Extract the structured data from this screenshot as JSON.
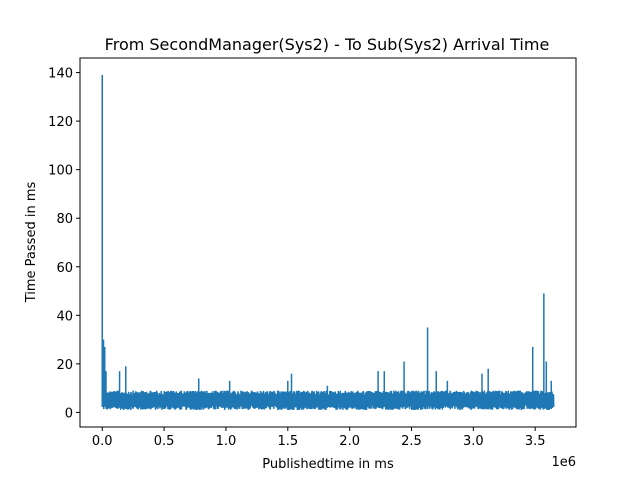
{
  "chart_data": {
    "type": "line",
    "title": "From SecondManager(Sys2) - To Sub(Sys2) Arrival Time",
    "xlabel": "Publishedtime in ms",
    "ylabel": "Time Passed in ms",
    "x_offset_label": "1e6",
    "xlim": [
      -0.18,
      3.83
    ],
    "ylim": [
      -6.0,
      146.0
    ],
    "x_ticks": [
      0,
      0.5,
      1.0,
      1.5,
      2.0,
      2.5,
      3.0,
      3.5
    ],
    "x_tick_labels": [
      "0.0",
      "0.5",
      "1.0",
      "1.5",
      "2.0",
      "2.5",
      "3.0",
      "3.5"
    ],
    "y_ticks": [
      0,
      20,
      40,
      60,
      80,
      100,
      120,
      140
    ],
    "y_tick_labels": [
      "0",
      "20",
      "40",
      "60",
      "80",
      "100",
      "120",
      "140"
    ],
    "grid": false,
    "series": [
      {
        "color": "#1f77b4",
        "baseline_band": [
          1,
          9
        ],
        "spikes": [
          {
            "x": 0.0,
            "y": 139
          },
          {
            "x": 0.0,
            "y": 39
          },
          {
            "x": 0.01,
            "y": 30
          },
          {
            "x": 0.02,
            "y": 27
          },
          {
            "x": 0.03,
            "y": 17
          },
          {
            "x": 0.14,
            "y": 17
          },
          {
            "x": 0.19,
            "y": 19
          },
          {
            "x": 0.78,
            "y": 14
          },
          {
            "x": 1.03,
            "y": 13
          },
          {
            "x": 1.5,
            "y": 13
          },
          {
            "x": 1.53,
            "y": 16
          },
          {
            "x": 1.82,
            "y": 11
          },
          {
            "x": 2.23,
            "y": 17
          },
          {
            "x": 2.28,
            "y": 17
          },
          {
            "x": 2.44,
            "y": 21
          },
          {
            "x": 2.63,
            "y": 35
          },
          {
            "x": 2.7,
            "y": 17
          },
          {
            "x": 2.79,
            "y": 13
          },
          {
            "x": 3.07,
            "y": 16
          },
          {
            "x": 3.12,
            "y": 18
          },
          {
            "x": 3.48,
            "y": 27
          },
          {
            "x": 3.57,
            "y": 49
          },
          {
            "x": 3.59,
            "y": 21
          },
          {
            "x": 3.63,
            "y": 13
          }
        ],
        "x_end": 3.65
      }
    ]
  }
}
